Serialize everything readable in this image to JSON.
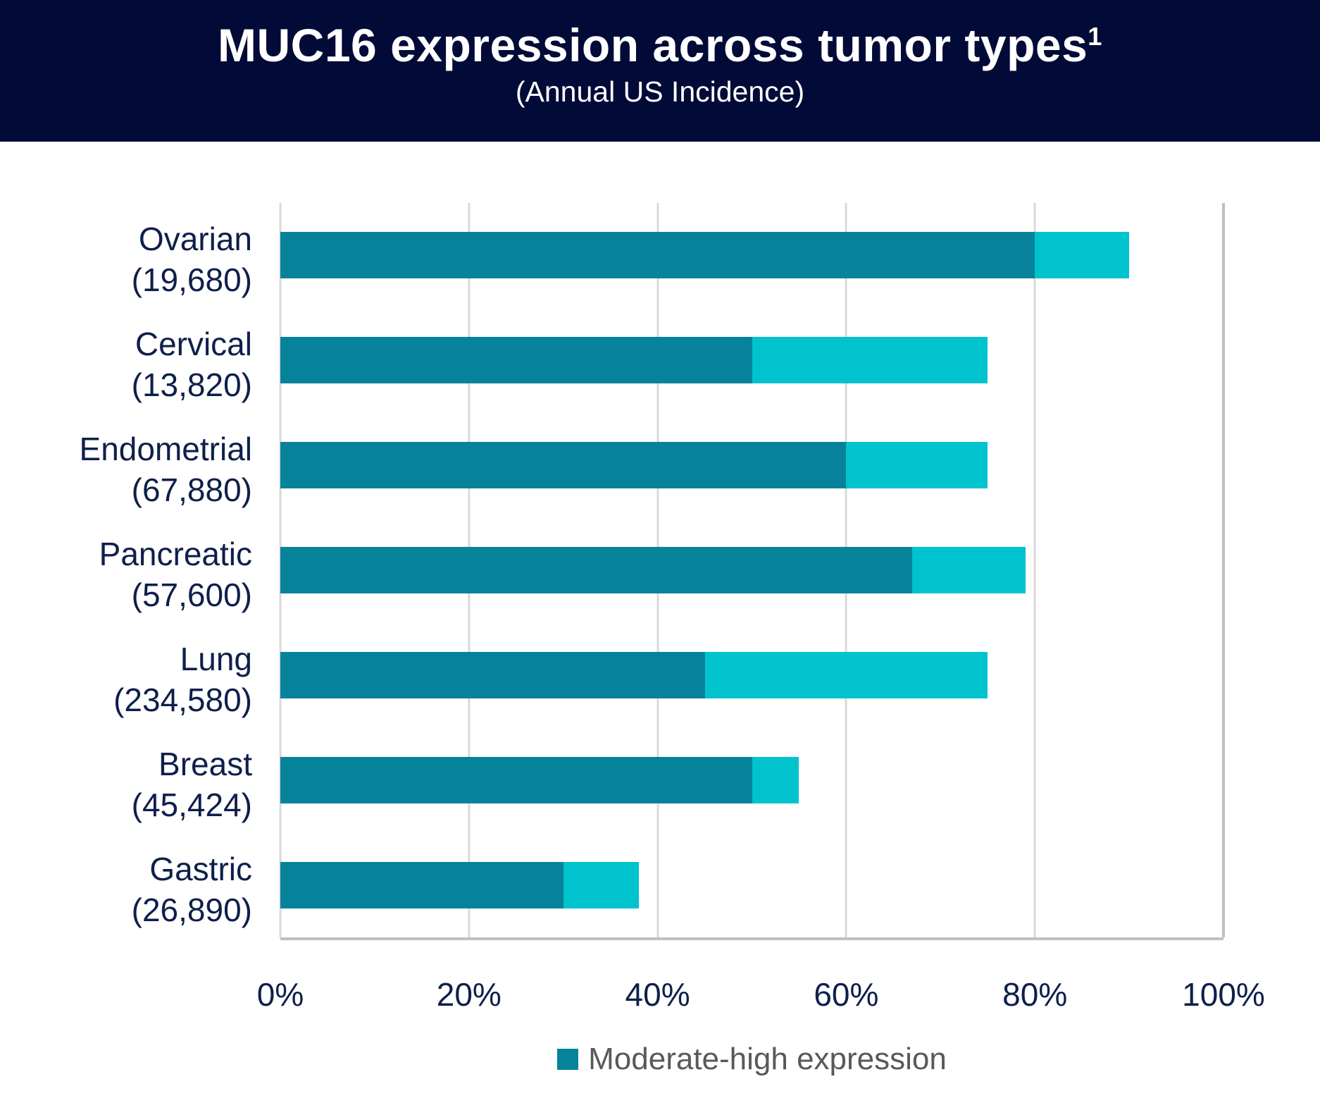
{
  "header": {
    "title": "MUC16 expression across tumor types",
    "title_superscript": "1",
    "subtitle": "(Annual US Incidence)",
    "background": "#020A38",
    "text_color": "#FFFFFF"
  },
  "chart_data": {
    "type": "bar",
    "orientation": "horizontal",
    "stacked": true,
    "categories": [
      {
        "label": "Ovarian",
        "incidence": "(19,680)"
      },
      {
        "label": "Cervical",
        "incidence": "(13,820)"
      },
      {
        "label": "Endometrial",
        "incidence": "(67,880)"
      },
      {
        "label": "Pancreatic",
        "incidence": "(57,600)"
      },
      {
        "label": "Lung",
        "incidence": "(234,580)"
      },
      {
        "label": "Breast",
        "incidence": "(45,424)"
      },
      {
        "label": "Gastric",
        "incidence": "(26,890)"
      }
    ],
    "series": [
      {
        "name": "Moderate-high expression",
        "color": "#06829B",
        "values": [
          80,
          50,
          60,
          67,
          45,
          50,
          30
        ]
      },
      {
        "name": "",
        "color": "#00C3CE",
        "values": [
          10,
          25,
          15,
          12,
          30,
          5,
          8
        ]
      }
    ],
    "stacked_totals": [
      90,
      75,
      75,
      79,
      75,
      55,
      38
    ],
    "x_axis": {
      "min": 0,
      "max": 100,
      "ticks": [
        "0%",
        "20%",
        "40%",
        "60%",
        "80%",
        "100%"
      ],
      "gridlines": true
    },
    "legend": {
      "position": "bottom",
      "entries": [
        {
          "label": "Moderate-high expression",
          "color": "#06829B"
        }
      ],
      "text_color": "#595959"
    }
  },
  "colors": {
    "header_background": "#020A38",
    "bar_primary": "#06829B",
    "bar_secondary": "#00C3CE",
    "gridline": "#D9D9D9",
    "axis_line": "#BFBFBF",
    "category_text": "#0E1F4B",
    "legend_text": "#595959"
  }
}
